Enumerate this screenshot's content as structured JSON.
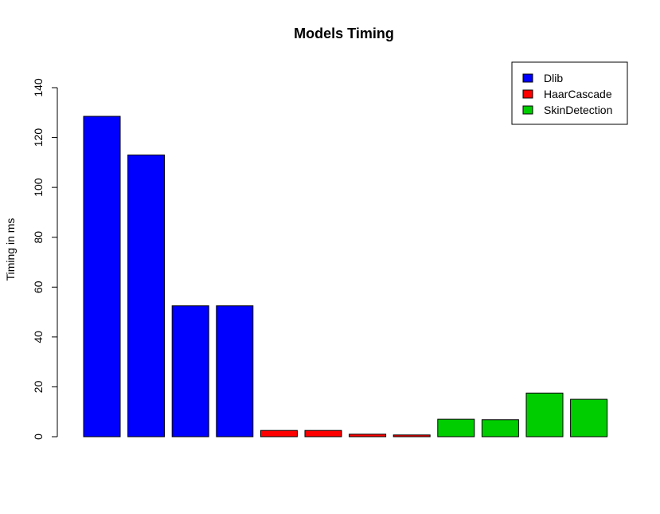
{
  "chart_data": {
    "type": "bar",
    "title": "Models Timing",
    "xlabel": "",
    "ylabel": "Timing in ms",
    "ylim": [
      0,
      140
    ],
    "yticks": [
      0,
      20,
      40,
      60,
      80,
      100,
      120,
      140
    ],
    "grid": false,
    "legend_position": "top-right",
    "series": [
      {
        "name": "Dlib",
        "color": "#0000ff",
        "values": [
          128.5,
          113,
          52.5,
          52.5
        ]
      },
      {
        "name": "HaarCascade",
        "color": "#ff0000",
        "values": [
          2.5,
          2.5,
          1,
          0.7
        ]
      },
      {
        "name": "SkinDetection",
        "color": "#00cd00",
        "values": [
          7,
          6.8,
          17.5,
          15
        ]
      }
    ]
  }
}
